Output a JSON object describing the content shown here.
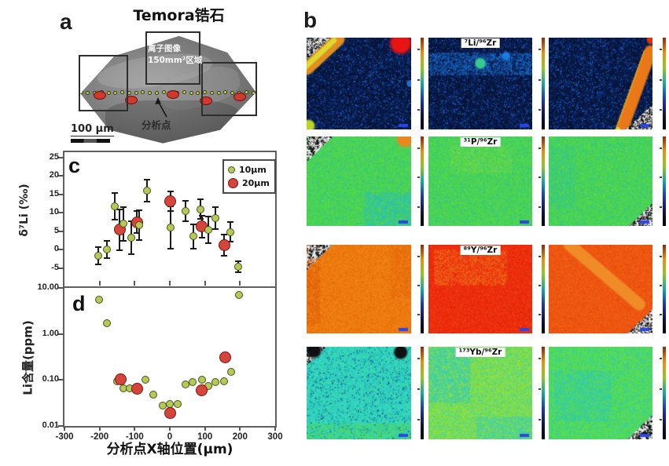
{
  "panel_a": {
    "label": "a",
    "title": "Temora锆石",
    "region_note_line1": "离子图像",
    "region_note_line2": "150mm²区域",
    "analysis_points_label": "分析点",
    "scalebar_label": "100 μm",
    "analysis_dots": {
      "green_count": 26,
      "green_y": 75,
      "red_spots": [
        [
          27,
          78
        ],
        [
          67,
          84
        ],
        [
          120,
          77
        ],
        [
          162,
          85
        ],
        [
          205,
          80
        ]
      ]
    }
  },
  "panel_b": {
    "label": "b",
    "colorbar_colors": [
      "#000006",
      "#14144e",
      "#1a3ab8",
      "#18a8a0",
      "#8cc822",
      "#e89010",
      "#8c2808"
    ],
    "map_scalebar_color": "#2a46e8",
    "rows": [
      {
        "ratio_label": "⁷Li/⁹⁶Zr",
        "base": "#08173d",
        "noise": [
          "#0b2d78",
          "#14409e",
          "#050d24",
          "#2a6ad8",
          "#071a4a"
        ],
        "maps": [
          {
            "features": [
              [
                "speckle",
                "tl",
                36
              ],
              [
                "diagline",
                0.0,
                0.34,
                0.32,
                0.0,
                "#e09020",
                "#e0d830"
              ],
              [
                "blob",
                0.9,
                0.06,
                16,
                "#e81414"
              ],
              [
                "blob",
                0.02,
                0.96,
                9,
                "#bcd428"
              ],
              [
                "blob",
                0.99,
                0.5,
                5,
                "#2a6ad8"
              ]
            ]
          },
          {
            "labeled": true,
            "features": [
              [
                "hband",
                0.16,
                0.4,
                "#1e7ae0",
                0.5
              ],
              [
                "blob",
                0.5,
                0.28,
                8,
                "#38c890"
              ],
              [
                "blob",
                0.75,
                0.2,
                6,
                "#1e7ae0"
              ]
            ]
          },
          {
            "features": [
              [
                "diagline",
                0.98,
                0.15,
                0.7,
                1.02,
                "#e87818",
                "#e8d020"
              ],
              [
                "speckle",
                "br",
                32
              ],
              [
                "blob",
                0.99,
                0.02,
                7,
                "#e03010"
              ]
            ]
          }
        ]
      },
      {
        "ratio_label": "³¹P/⁹⁶Zr",
        "base": "#4cd455",
        "noise": [
          "#3cc878",
          "#62de48",
          "#2cc4a0",
          "#55d83c",
          "#40cc68"
        ],
        "maps": [
          {
            "features": [
              [
                "speckle",
                "tl",
                30
              ],
              [
                "blob",
                0.94,
                0.03,
                12,
                "#e88820"
              ],
              [
                "patch",
                0.55,
                0.62,
                0.45,
                0.38,
                "#2cc0c8",
                0.55
              ]
            ]
          },
          {
            "labeled": true,
            "features": [
              [
                "patch",
                0.2,
                0.1,
                0.6,
                0.3,
                "#8ae04a",
                0.3
              ]
            ]
          },
          {
            "features": [
              [
                "patch",
                0.0,
                0.1,
                0.25,
                0.7,
                "#3ac8a0",
                0.35
              ],
              [
                "speckle",
                "br",
                28
              ]
            ]
          }
        ]
      },
      {
        "ratio_label": "⁸⁹Y/⁹⁶Zr",
        "base": "#ee7d12",
        "noise": [
          "#e87008",
          "#f68c1e",
          "#e2660a",
          "#f2820f",
          "#ea780c"
        ],
        "maps": [
          {
            "features": [
              [
                "speckle",
                "tl",
                30
              ],
              [
                "patch",
                0.0,
                0.15,
                0.12,
                0.75,
                "#e05c10",
                0.5
              ],
              [
                "patch",
                0.8,
                0.0,
                0.2,
                0.6,
                "#e8680e",
                0.4
              ]
            ]
          },
          {
            "labeled": true,
            "base": "#ee2a0e",
            "noise": [
              "#e83a10",
              "#f23c0c",
              "#d82808",
              "#f04818"
            ],
            "features": [
              [
                "patch",
                0.05,
                0.05,
                0.7,
                0.4,
                "#f07820",
                0.5
              ]
            ]
          },
          {
            "base": "#f05512",
            "noise": [
              "#e86010",
              "#f26a18",
              "#e04c0c",
              "#f05c14"
            ],
            "features": [
              [
                "diagline",
                0.2,
                0.0,
                0.9,
                0.7,
                "#f08c28",
                null
              ],
              [
                "speckle",
                "br",
                30
              ]
            ]
          }
        ]
      },
      {
        "ratio_label": "¹⁷³Yb/⁹⁶Zr",
        "base": "#38d8b8",
        "noise": [
          "#28c0d0",
          "#40e0a0",
          "#18a8c8",
          "#30cce0",
          "#2cc8b0",
          "#0a4a90"
        ],
        "maps": [
          {
            "features": [
              [
                "speckle",
                "tl",
                22
              ],
              [
                "blob",
                0.9,
                0.06,
                10,
                "#101014"
              ],
              [
                "blob",
                0.07,
                0.04,
                11,
                "#101014"
              ],
              [
                "patch",
                0.0,
                0.82,
                1.0,
                0.18,
                "#58dc50",
                0.5
              ]
            ]
          },
          {
            "labeled": true,
            "base": "#84de4a",
            "noise": [
              "#74d83c",
              "#90e455",
              "#50d890",
              "#3cd0c0"
            ],
            "features": [
              [
                "patch",
                0.0,
                0.0,
                0.4,
                0.6,
                "#30ccc8",
                0.55
              ],
              [
                "patch",
                0.45,
                0.75,
                0.55,
                0.25,
                "#38d0c0",
                0.5
              ]
            ]
          },
          {
            "base": "#55dc55",
            "noise": [
              "#48d468",
              "#62e24c",
              "#38ccac",
              "#30c8c8"
            ],
            "features": [
              [
                "patch",
                0.05,
                0.25,
                0.55,
                0.55,
                "#34ccbc",
                0.45
              ],
              [
                "speckle",
                "br",
                30
              ]
            ]
          }
        ]
      }
    ]
  },
  "chart_data": [
    {
      "id": "c",
      "type": "scatter",
      "panel_label": "c",
      "ylabel": "δ⁷Li (‰)",
      "ylim": [
        -10,
        26.5
      ],
      "yticks": [
        25,
        20,
        15,
        10,
        5,
        0,
        -5
      ],
      "xlim": [
        -300,
        300
      ],
      "xticks_minor": [
        -200,
        -100,
        0,
        100,
        200
      ],
      "legend": [
        {
          "label": "10μm",
          "color": "#b5c957",
          "edge": "#47521d",
          "size": 9
        },
        {
          "label": "20μm",
          "color": "#d4453c",
          "edge": "#7c140f",
          "size": 14
        }
      ],
      "series": [
        {
          "name": "20um",
          "color": "#d4453c",
          "edge": "#7c140f",
          "size": 15,
          "points": [
            [
              -143,
              5.4,
              5.6
            ],
            [
              -94,
              7.5,
              3.0
            ],
            [
              2,
              13.2,
              2.7
            ],
            [
              91,
              6.3,
              3.0
            ],
            [
              155,
              1.2,
              2.8
            ]
          ]
        },
        {
          "name": "10um",
          "color": "#b5c957",
          "edge": "#47521d",
          "size": 10,
          "points": [
            [
              -204,
              -1.7,
              2.3
            ],
            [
              -180,
              0.0,
              2.3
            ],
            [
              -157,
              11.8,
              3.6
            ],
            [
              -133,
              7.0,
              4.6
            ],
            [
              -110,
              3.2,
              4.5
            ],
            [
              -88,
              6.6,
              4.0
            ],
            [
              -65,
              16.0,
              3.0
            ],
            [
              2,
              6.0,
              5.8
            ],
            [
              44,
              10.5,
              2.8
            ],
            [
              68,
              3.6,
              3.3
            ],
            [
              88,
              11.0,
              2.7
            ],
            [
              110,
              5.3,
              3.6
            ],
            [
              130,
              8.5,
              3.0
            ],
            [
              172,
              4.8,
              2.7
            ],
            [
              195,
              -4.6,
              1.5
            ]
          ]
        }
      ]
    },
    {
      "id": "d",
      "type": "scatter",
      "panel_label": "d",
      "ylabel": "Li含量(ppm)",
      "xlabel": "分析点X轴位置(μm)",
      "yscale": "log",
      "ylim": [
        0.01,
        10
      ],
      "yticks": [
        [
          10,
          "10.00"
        ],
        [
          1,
          "1.00"
        ],
        [
          0.1,
          "0.10"
        ],
        [
          0.01,
          "0.01"
        ]
      ],
      "xlim": [
        -300,
        300
      ],
      "xticks": [
        -300,
        -200,
        -100,
        0,
        100,
        200,
        300
      ],
      "series": [
        {
          "name": "10um",
          "color": "#b5c957",
          "edge": "#47521d",
          "size": 10,
          "points": [
            [
              -202,
              5.5
            ],
            [
              -178,
              1.7
            ],
            [
              -150,
              0.095
            ],
            [
              -132,
              0.065
            ],
            [
              -114,
              0.066
            ],
            [
              -69,
              0.1
            ],
            [
              -47,
              0.049
            ],
            [
              -20,
              0.028
            ],
            [
              0,
              0.03
            ],
            [
              22,
              0.03
            ],
            [
              45,
              0.08
            ],
            [
              65,
              0.09
            ],
            [
              92,
              0.1
            ],
            [
              110,
              0.075
            ],
            [
              130,
              0.09
            ],
            [
              155,
              0.095
            ],
            [
              175,
              0.15
            ],
            [
              197,
              7.0
            ]
          ]
        },
        {
          "name": "20um",
          "color": "#d4453c",
          "edge": "#7c140f",
          "size": 15,
          "points": [
            [
              -141,
              0.105
            ],
            [
              -94,
              0.065
            ],
            [
              2,
              0.019
            ],
            [
              90,
              0.06
            ],
            [
              157,
              0.31
            ]
          ]
        }
      ]
    }
  ]
}
